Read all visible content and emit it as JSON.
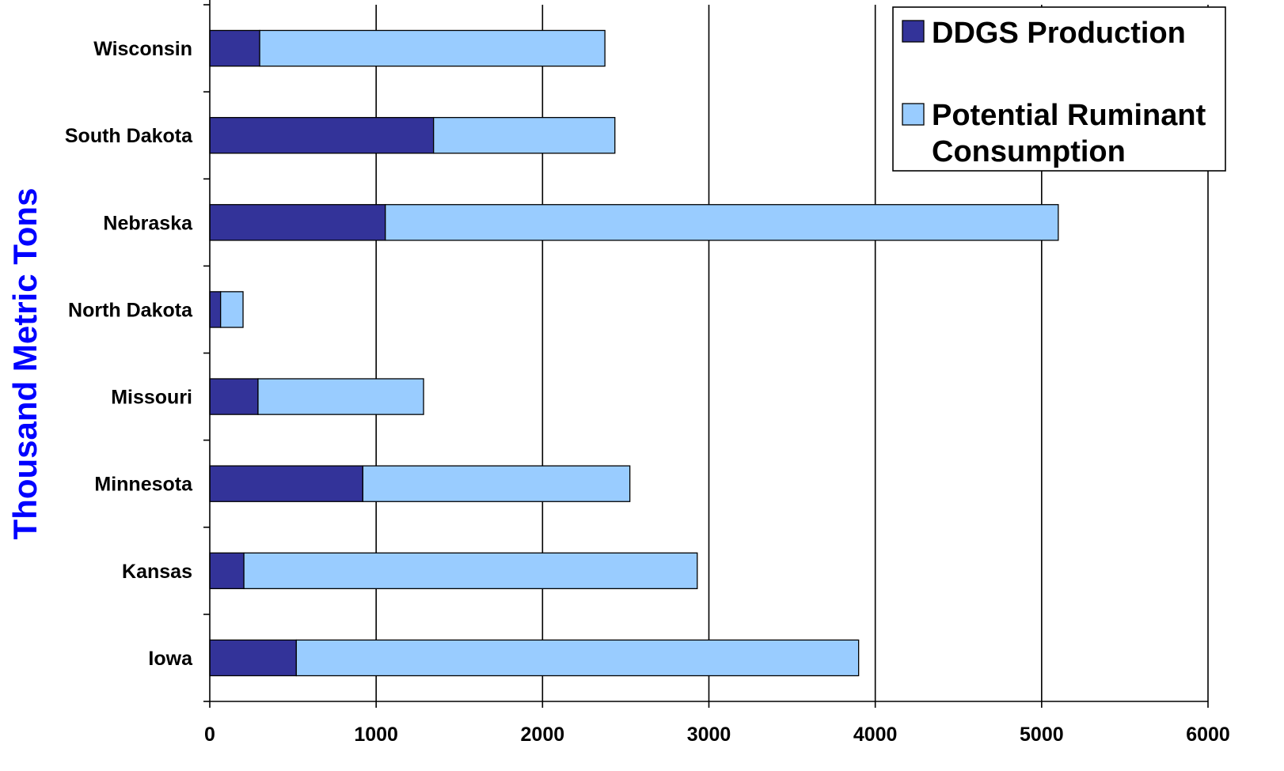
{
  "chart_data": {
    "type": "bar",
    "orientation": "horizontal",
    "stacked": true,
    "title": "",
    "xlabel": "",
    "ylabel": "Thousand Metric Tons",
    "xlim": [
      0,
      6000
    ],
    "xticks": [
      0,
      1000,
      2000,
      3000,
      4000,
      5000,
      6000
    ],
    "grid": "vertical",
    "legend_position": "top-right",
    "categories": [
      "Iowa",
      "Kansas",
      "Minnesota",
      "Missouri",
      "North Dakota",
      "Nebraska",
      "South Dakota",
      "Wisconsin"
    ],
    "series": [
      {
        "name": "DDGS Production",
        "color": "#333399",
        "values": [
          520,
          205,
          920,
          290,
          65,
          1055,
          1345,
          300
        ]
      },
      {
        "name": "Potential Ruminant Consumption",
        "color": "#99ccff",
        "values": [
          3380,
          2725,
          1605,
          995,
          135,
          4045,
          1090,
          2075
        ]
      }
    ],
    "colors": {
      "ylabel": "#0000ff",
      "outline": "#000000",
      "grid": "#000000"
    }
  }
}
